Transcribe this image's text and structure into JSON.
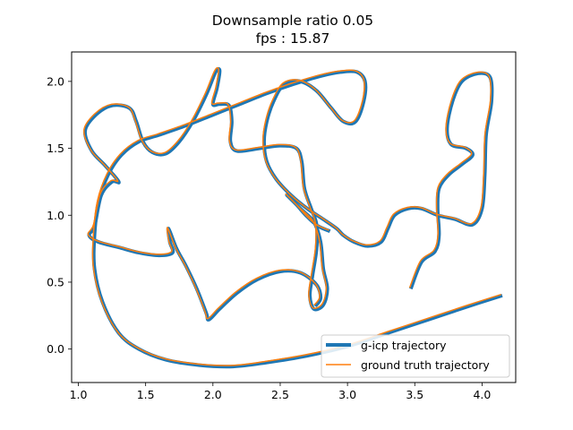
{
  "chart_data": {
    "type": "line",
    "title_line1": "Downsample ratio 0.05",
    "title_line2": "fps : 15.87",
    "xlabel": "",
    "ylabel": "",
    "xlim": [
      0.95,
      4.25
    ],
    "ylim": [
      -0.25,
      2.22
    ],
    "x_ticks": [
      1.0,
      1.5,
      2.0,
      2.5,
      3.0,
      3.5,
      4.0
    ],
    "x_tick_labels": [
      "1.0",
      "1.5",
      "2.0",
      "2.5",
      "3.0",
      "3.5",
      "4.0"
    ],
    "y_ticks": [
      0.0,
      0.5,
      1.0,
      1.5,
      2.0
    ],
    "y_tick_labels": [
      "0.0",
      "0.5",
      "1.0",
      "1.5",
      "2.0"
    ],
    "grid": false,
    "legend_position": "lower-right",
    "series": [
      {
        "name": "g-icp trajectory",
        "color": "#1f77b4",
        "linewidth": 4
      },
      {
        "name": "ground truth trajectory",
        "color": "#ff7f0e",
        "linewidth": 1.5
      }
    ],
    "trajectory": [
      [
        4.15,
        0.4
      ],
      [
        3.9,
        0.32
      ],
      [
        3.6,
        0.22
      ],
      [
        3.3,
        0.12
      ],
      [
        3.0,
        0.02
      ],
      [
        2.7,
        -0.05
      ],
      [
        2.4,
        -0.1
      ],
      [
        2.15,
        -0.13
      ],
      [
        1.9,
        -0.12
      ],
      [
        1.65,
        -0.08
      ],
      [
        1.45,
        0.0
      ],
      [
        1.3,
        0.12
      ],
      [
        1.18,
        0.35
      ],
      [
        1.12,
        0.6
      ],
      [
        1.12,
        0.85
      ],
      [
        1.15,
        1.1
      ],
      [
        1.22,
        1.3
      ],
      [
        1.32,
        1.45
      ],
      [
        1.45,
        1.55
      ],
      [
        1.6,
        1.6
      ],
      [
        1.8,
        1.67
      ],
      [
        2.0,
        1.75
      ],
      [
        2.2,
        1.83
      ],
      [
        2.4,
        1.91
      ],
      [
        2.6,
        1.98
      ],
      [
        2.8,
        2.04
      ],
      [
        2.95,
        2.07
      ],
      [
        3.07,
        2.07
      ],
      [
        3.13,
        2.0
      ],
      [
        3.12,
        1.85
      ],
      [
        3.06,
        1.7
      ],
      [
        2.97,
        1.7
      ],
      [
        2.88,
        1.8
      ],
      [
        2.77,
        1.93
      ],
      [
        2.65,
        2.0
      ],
      [
        2.53,
        1.98
      ],
      [
        2.45,
        1.85
      ],
      [
        2.4,
        1.7
      ],
      [
        2.38,
        1.55
      ],
      [
        2.4,
        1.4
      ],
      [
        2.47,
        1.27
      ],
      [
        2.58,
        1.15
      ],
      [
        2.7,
        1.05
      ],
      [
        2.82,
        0.97
      ],
      [
        2.92,
        0.9
      ],
      [
        2.97,
        0.85
      ],
      [
        3.05,
        0.8
      ],
      [
        3.15,
        0.77
      ],
      [
        3.25,
        0.8
      ],
      [
        3.3,
        0.9
      ],
      [
        3.35,
        1.0
      ],
      [
        3.45,
        1.05
      ],
      [
        3.55,
        1.05
      ],
      [
        3.67,
        1.0
      ],
      [
        3.8,
        0.97
      ],
      [
        3.93,
        0.93
      ],
      [
        4.0,
        1.05
      ],
      [
        4.02,
        1.3
      ],
      [
        4.03,
        1.6
      ],
      [
        4.07,
        1.85
      ],
      [
        4.06,
        2.03
      ],
      [
        3.97,
        2.06
      ],
      [
        3.85,
        2.0
      ],
      [
        3.78,
        1.85
      ],
      [
        3.74,
        1.65
      ],
      [
        3.77,
        1.53
      ],
      [
        3.88,
        1.5
      ],
      [
        3.93,
        1.45
      ],
      [
        3.85,
        1.38
      ],
      [
        3.75,
        1.3
      ],
      [
        3.68,
        1.2
      ],
      [
        3.67,
        1.05
      ],
      [
        3.68,
        0.85
      ],
      [
        3.65,
        0.73
      ],
      [
        3.55,
        0.65
      ],
      [
        3.47,
        0.45
      ]
    ],
    "trajectory_2": [
      [
        2.87,
        0.88
      ],
      [
        2.78,
        0.92
      ],
      [
        2.7,
        0.99
      ],
      [
        2.62,
        1.08
      ],
      [
        2.55,
        1.15
      ],
      [
        2.65,
        1.05
      ],
      [
        2.75,
        0.95
      ],
      [
        2.8,
        0.8
      ],
      [
        2.82,
        0.6
      ],
      [
        2.85,
        0.45
      ],
      [
        2.82,
        0.33
      ],
      [
        2.75,
        0.3
      ],
      [
        2.72,
        0.4
      ],
      [
        2.74,
        0.55
      ],
      [
        2.77,
        0.75
      ],
      [
        2.77,
        0.93
      ],
      [
        2.73,
        1.05
      ],
      [
        2.68,
        1.2
      ],
      [
        2.66,
        1.4
      ],
      [
        2.62,
        1.5
      ],
      [
        2.5,
        1.52
      ],
      [
        2.35,
        1.5
      ],
      [
        2.18,
        1.48
      ],
      [
        2.13,
        1.55
      ],
      [
        2.14,
        1.7
      ],
      [
        2.12,
        1.82
      ],
      [
        2.05,
        1.83
      ],
      [
        2.0,
        1.83
      ],
      [
        2.03,
        1.95
      ],
      [
        2.05,
        2.08
      ],
      [
        2.02,
        2.07
      ],
      [
        1.95,
        1.9
      ],
      [
        1.85,
        1.7
      ],
      [
        1.75,
        1.55
      ],
      [
        1.65,
        1.46
      ],
      [
        1.55,
        1.47
      ],
      [
        1.48,
        1.55
      ],
      [
        1.43,
        1.7
      ],
      [
        1.38,
        1.8
      ],
      [
        1.25,
        1.82
      ],
      [
        1.13,
        1.75
      ],
      [
        1.05,
        1.63
      ],
      [
        1.1,
        1.48
      ],
      [
        1.2,
        1.37
      ],
      [
        1.3,
        1.25
      ],
      [
        1.25,
        1.25
      ],
      [
        1.17,
        1.15
      ],
      [
        1.12,
        0.92
      ],
      [
        1.08,
        0.85
      ],
      [
        1.15,
        0.8
      ],
      [
        1.3,
        0.76
      ],
      [
        1.45,
        0.72
      ],
      [
        1.6,
        0.7
      ],
      [
        1.7,
        0.72
      ],
      [
        1.68,
        0.8
      ],
      [
        1.67,
        0.9
      ],
      [
        1.73,
        0.75
      ],
      [
        1.8,
        0.62
      ],
      [
        1.88,
        0.45
      ],
      [
        1.95,
        0.27
      ],
      [
        1.97,
        0.22
      ],
      [
        2.05,
        0.3
      ],
      [
        2.18,
        0.42
      ],
      [
        2.33,
        0.52
      ],
      [
        2.5,
        0.58
      ],
      [
        2.65,
        0.57
      ],
      [
        2.77,
        0.48
      ],
      [
        2.8,
        0.38
      ],
      [
        2.76,
        0.32
      ]
    ]
  }
}
